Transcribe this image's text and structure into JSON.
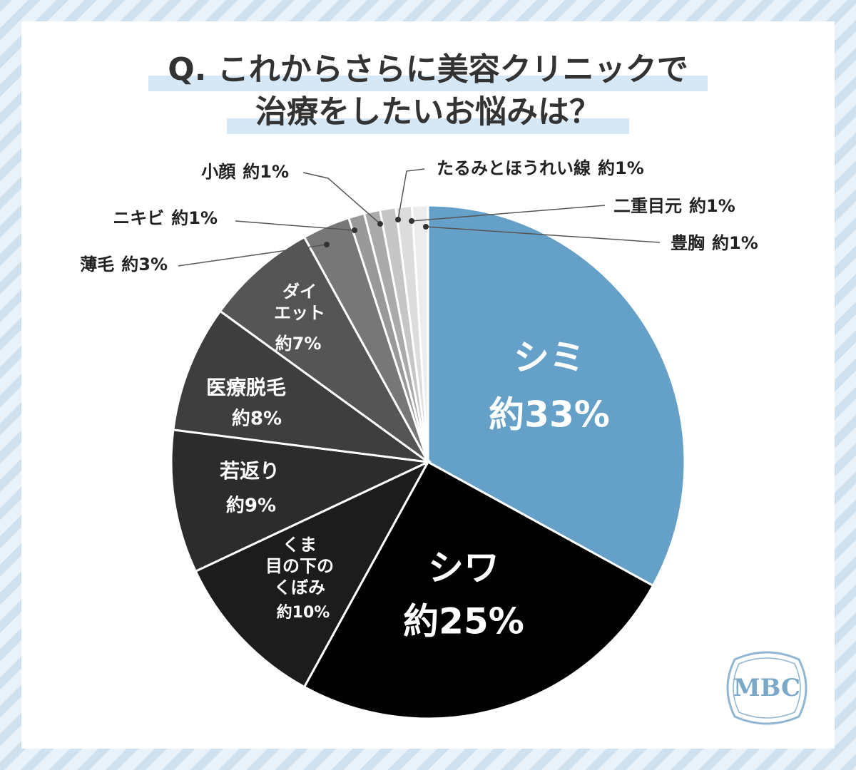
{
  "chart_data": {
    "type": "pie",
    "title": "Q. これからさらに美容クリニックで\n治療をしたいお悩みは？",
    "categories": [
      "シミ",
      "シワ",
      "くま\n目の下の\nくぼみ",
      "若返り",
      "医療脱毛",
      "ダイ\nエット",
      "薄毛",
      "ニキビ",
      "小顔",
      "たるみとほうれい線",
      "二重目元",
      "豊胸"
    ],
    "values": [
      33,
      25,
      10,
      9,
      8,
      7,
      3,
      1,
      1,
      1,
      1,
      1
    ],
    "value_labels": [
      "約33%",
      "約25%",
      "約10%",
      "約9%",
      "約8%",
      "約7%",
      "約3%",
      "約1%",
      "約1%",
      "約1%",
      "約1%",
      "約1%"
    ],
    "colors": [
      "#64a0c8",
      "#000000",
      "#1c1c1c",
      "#2c2c2c",
      "#3e3e3e",
      "#555555",
      "#777777",
      "#999999",
      "#aaaaaa",
      "#c6c6c6",
      "#dcdcdc",
      "#ececec"
    ],
    "logo": "MBC"
  }
}
